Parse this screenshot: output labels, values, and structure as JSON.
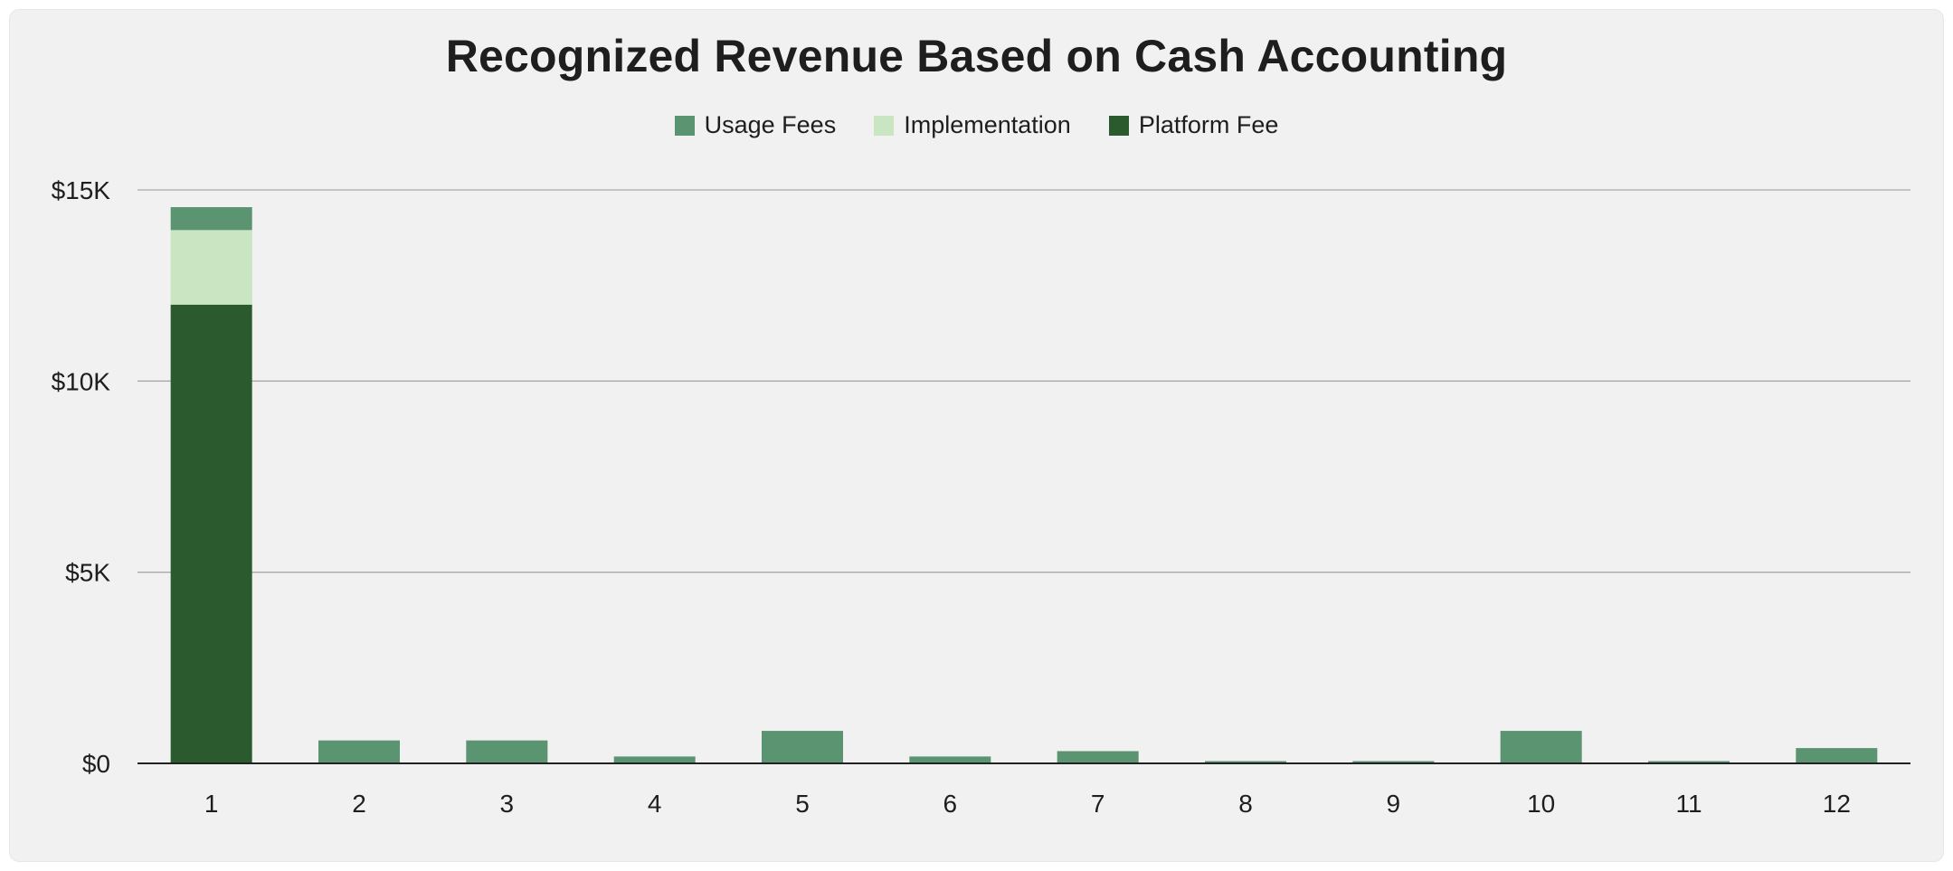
{
  "chart_data": {
    "type": "bar",
    "stacked": true,
    "title": "Recognized Revenue Based on Cash Accounting",
    "xlabel": "",
    "ylabel": "",
    "categories": [
      "1",
      "2",
      "3",
      "4",
      "5",
      "6",
      "7",
      "8",
      "9",
      "10",
      "11",
      "12"
    ],
    "series": [
      {
        "name": "Platform Fee",
        "color": "#2a5a2e",
        "values": [
          12000,
          0,
          0,
          0,
          0,
          0,
          0,
          0,
          0,
          0,
          0,
          0
        ]
      },
      {
        "name": "Implementation",
        "color": "#c9e5c2",
        "values": [
          1950,
          0,
          0,
          0,
          0,
          0,
          0,
          0,
          0,
          0,
          0,
          0
        ]
      },
      {
        "name": "Usage Fees",
        "color": "#5b9470",
        "values": [
          600,
          600,
          600,
          180,
          850,
          180,
          320,
          60,
          60,
          850,
          60,
          400
        ]
      }
    ],
    "legend_order": [
      "Usage Fees",
      "Implementation",
      "Platform Fee"
    ],
    "ylim": [
      0,
      15000
    ],
    "yticks": [
      {
        "value": 0,
        "label": "$0"
      },
      {
        "value": 5000,
        "label": "$5K"
      },
      {
        "value": 10000,
        "label": "$10K"
      },
      {
        "value": 15000,
        "label": "$15K"
      }
    ],
    "grid": true,
    "legend_position": "top-center"
  }
}
